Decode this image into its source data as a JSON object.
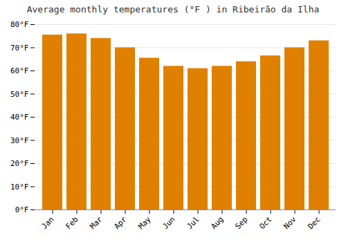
{
  "chart_data": {
    "type": "bar",
    "title": "Average monthly temperatures (°F ) in Ribeirão da Ilha",
    "categories": [
      "Jan",
      "Feb",
      "Mar",
      "Apr",
      "May",
      "Jun",
      "Jul",
      "Aug",
      "Sep",
      "Oct",
      "Nov",
      "Dec"
    ],
    "values": [
      75.5,
      76.0,
      74.0,
      70.0,
      65.5,
      62.0,
      61.0,
      62.0,
      64.0,
      66.5,
      70.0,
      73.0
    ],
    "color": "#E08000",
    "ylim": [
      0,
      80
    ],
    "yticks": [
      {
        "value": 0,
        "label": "0°F"
      },
      {
        "value": 10,
        "label": "10°F"
      },
      {
        "value": 20,
        "label": "20°F"
      },
      {
        "value": 30,
        "label": "30°F"
      },
      {
        "value": 40,
        "label": "40°F"
      },
      {
        "value": 50,
        "label": "50°F"
      },
      {
        "value": 60,
        "label": "60°F"
      },
      {
        "value": 70,
        "label": "70°F"
      },
      {
        "value": 80,
        "label": "80°F"
      }
    ],
    "grid": true
  }
}
